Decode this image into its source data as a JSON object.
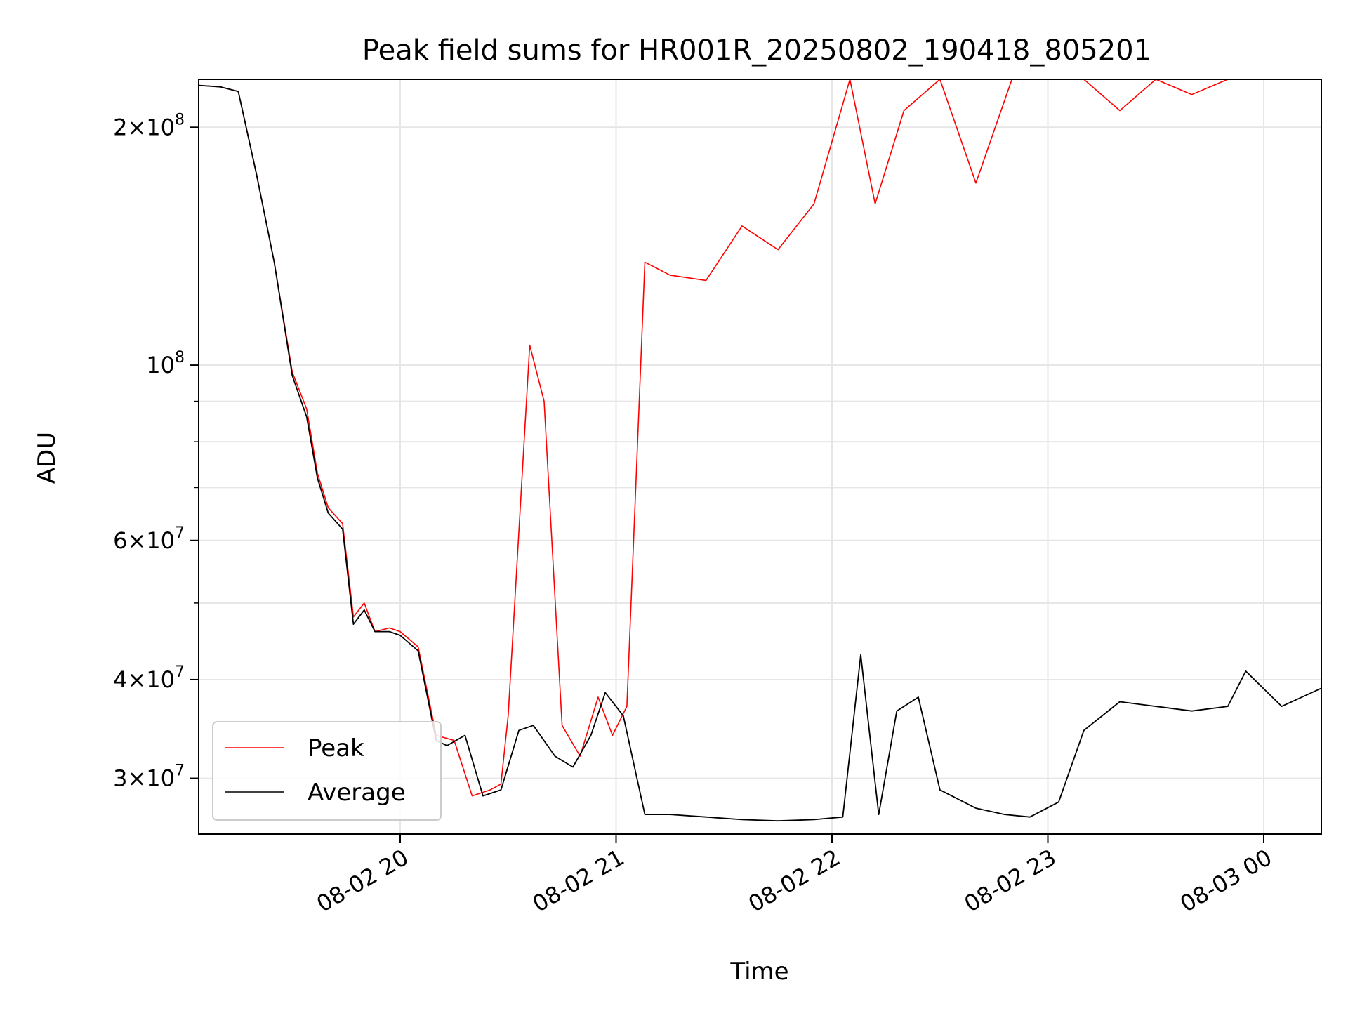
{
  "chart_data": {
    "type": "line",
    "title": "Peak field sums for HR001R_20250802_190418_805201",
    "xlabel": "Time",
    "ylabel": "ADU",
    "yscale": "log",
    "xlim": [
      "2025-08-02 19:04",
      "2025-08-03 00:16"
    ],
    "ylim": [
      25500000,
      230000000
    ],
    "grid": true,
    "legend_position": "lower-left",
    "x_ticks": [
      {
        "value": "2025-08-02 20:00",
        "label": "08-02 20"
      },
      {
        "value": "2025-08-02 21:00",
        "label": "08-02 21"
      },
      {
        "value": "2025-08-02 22:00",
        "label": "08-02 22"
      },
      {
        "value": "2025-08-02 23:00",
        "label": "08-02 23"
      },
      {
        "value": "2025-08-03 00:00",
        "label": "08-03 00"
      }
    ],
    "y_ticks": [
      {
        "value": 30000000,
        "mantissa": "3",
        "exponent": "7"
      },
      {
        "value": 40000000,
        "mantissa": "4",
        "exponent": "7"
      },
      {
        "value": 60000000,
        "mantissa": "6",
        "exponent": "7"
      },
      {
        "value": 100000000,
        "mantissa": "",
        "exponent": "8"
      },
      {
        "value": 200000000,
        "mantissa": "2",
        "exponent": "8"
      }
    ],
    "y_minor_ticks": [
      50000000,
      70000000,
      80000000,
      90000000
    ],
    "series": [
      {
        "name": "Peak",
        "color": "#ff0000",
        "x": [
          "2025-08-02 19:04",
          "2025-08-02 19:10",
          "2025-08-02 19:15",
          "2025-08-02 19:20",
          "2025-08-02 19:25",
          "2025-08-02 19:30",
          "2025-08-02 19:34",
          "2025-08-02 19:37",
          "2025-08-02 19:40",
          "2025-08-02 19:44",
          "2025-08-02 19:47",
          "2025-08-02 19:50",
          "2025-08-02 19:53",
          "2025-08-02 19:57",
          "2025-08-02 20:00",
          "2025-08-02 20:05",
          "2025-08-02 20:10",
          "2025-08-02 20:15",
          "2025-08-02 20:20",
          "2025-08-02 20:25",
          "2025-08-02 20:28",
          "2025-08-02 20:30",
          "2025-08-02 20:36",
          "2025-08-02 20:40",
          "2025-08-02 20:45",
          "2025-08-02 20:50",
          "2025-08-02 20:55",
          "2025-08-02 20:59",
          "2025-08-02 21:03",
          "2025-08-02 21:08",
          "2025-08-02 21:15",
          "2025-08-02 21:25",
          "2025-08-02 21:35",
          "2025-08-02 21:45",
          "2025-08-02 21:55",
          "2025-08-02 22:05",
          "2025-08-02 22:12",
          "2025-08-02 22:20",
          "2025-08-02 22:30",
          "2025-08-02 22:40",
          "2025-08-02 22:50",
          "2025-08-02 23:00",
          "2025-08-02 23:10",
          "2025-08-02 23:20",
          "2025-08-02 23:30",
          "2025-08-02 23:40",
          "2025-08-02 23:50",
          "2025-08-03 00:00",
          "2025-08-03 00:10",
          "2025-08-03 00:16"
        ],
        "y": [
          226000000,
          225000000,
          222000000,
          175000000,
          135000000,
          98000000,
          88000000,
          73000000,
          66000000,
          63000000,
          48000000,
          50000000,
          46000000,
          46500000,
          46000000,
          44000000,
          34000000,
          33500000,
          28500000,
          29000000,
          29500000,
          36000000,
          106000000,
          90000000,
          35000000,
          32000000,
          38000000,
          34000000,
          37000000,
          135000000,
          130000000,
          128000000,
          150000000,
          140000000,
          160000000,
          230000000,
          160000000,
          210000000,
          230000000,
          170000000,
          230000000,
          230000000,
          230000000,
          210000000,
          230000000,
          220000000,
          230000000,
          230000000,
          230000000,
          230000000
        ]
      },
      {
        "name": "Average",
        "color": "#000000",
        "x": [
          "2025-08-02 19:04",
          "2025-08-02 19:10",
          "2025-08-02 19:15",
          "2025-08-02 19:20",
          "2025-08-02 19:25",
          "2025-08-02 19:30",
          "2025-08-02 19:34",
          "2025-08-02 19:37",
          "2025-08-02 19:40",
          "2025-08-02 19:44",
          "2025-08-02 19:47",
          "2025-08-02 19:50",
          "2025-08-02 19:53",
          "2025-08-02 19:57",
          "2025-08-02 20:00",
          "2025-08-02 20:05",
          "2025-08-02 20:10",
          "2025-08-02 20:13",
          "2025-08-02 20:18",
          "2025-08-02 20:23",
          "2025-08-02 20:28",
          "2025-08-02 20:33",
          "2025-08-02 20:37",
          "2025-08-02 20:43",
          "2025-08-02 20:48",
          "2025-08-02 20:53",
          "2025-08-02 20:57",
          "2025-08-02 21:02",
          "2025-08-02 21:08",
          "2025-08-02 21:15",
          "2025-08-02 21:25",
          "2025-08-02 21:35",
          "2025-08-02 21:45",
          "2025-08-02 21:55",
          "2025-08-02 22:03",
          "2025-08-02 22:08",
          "2025-08-02 22:13",
          "2025-08-02 22:18",
          "2025-08-02 22:24",
          "2025-08-02 22:30",
          "2025-08-02 22:40",
          "2025-08-02 22:48",
          "2025-08-02 22:55",
          "2025-08-02 23:03",
          "2025-08-02 23:10",
          "2025-08-02 23:20",
          "2025-08-02 23:30",
          "2025-08-02 23:40",
          "2025-08-02 23:50",
          "2025-08-02 23:55",
          "2025-08-03 00:05",
          "2025-08-03 00:16"
        ],
        "y": [
          226000000,
          225000000,
          222000000,
          175000000,
          135000000,
          97000000,
          86000000,
          72000000,
          65000000,
          62000000,
          47000000,
          49000000,
          46000000,
          46000000,
          45500000,
          43500000,
          33500000,
          33000000,
          34000000,
          28500000,
          29000000,
          34500000,
          35000000,
          32000000,
          31000000,
          34000000,
          38500000,
          36000000,
          27000000,
          27000000,
          26800000,
          26600000,
          26500000,
          26600000,
          26800000,
          43000000,
          27000000,
          36500000,
          38000000,
          29000000,
          27500000,
          27000000,
          26800000,
          28000000,
          34500000,
          37500000,
          37000000,
          36500000,
          37000000,
          41000000,
          37000000,
          39000000
        ]
      }
    ]
  }
}
